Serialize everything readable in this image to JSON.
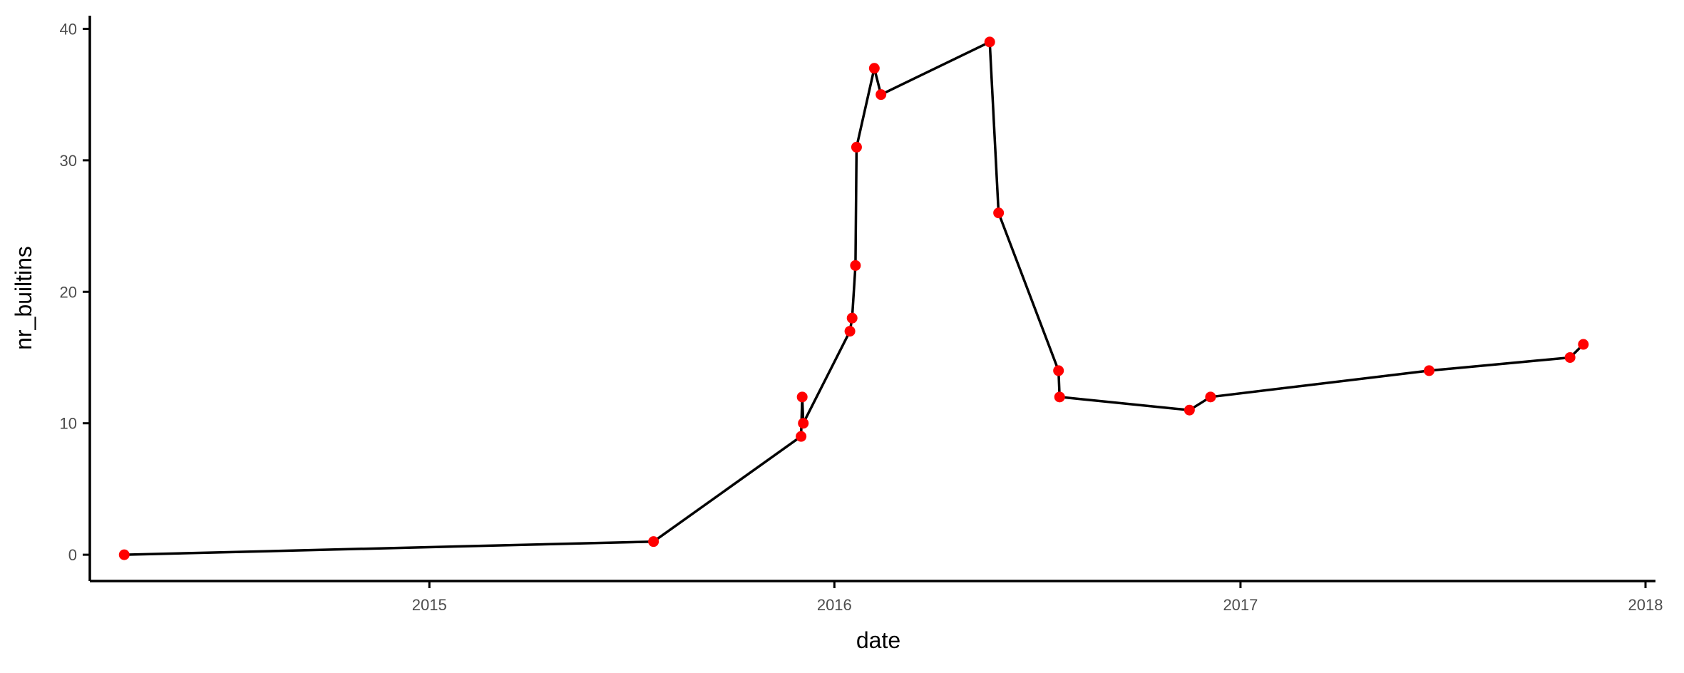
{
  "chart_data": {
    "type": "line",
    "title": "",
    "xlabel": "date",
    "ylabel": "nr_builtins",
    "x_is_date": true,
    "xlim": [
      "2014-03-01",
      "2018-01-10"
    ],
    "ylim": [
      -2,
      41
    ],
    "xticks": [
      {
        "value": "2015-01-01",
        "label": "2015"
      },
      {
        "value": "2016-01-01",
        "label": "2016"
      },
      {
        "value": "2017-01-01",
        "label": "2017"
      },
      {
        "value": "2018-01-01",
        "label": "2018"
      }
    ],
    "yticks": [
      0,
      10,
      20,
      30,
      40
    ],
    "grid": false,
    "legend": "none",
    "line_color": "#000000",
    "point_color": "#ff0000",
    "points": [
      {
        "x": "2014-04-01",
        "y": 0
      },
      {
        "x": "2015-07-22",
        "y": 1
      },
      {
        "x": "2015-12-02",
        "y": 9
      },
      {
        "x": "2015-12-03",
        "y": 12
      },
      {
        "x": "2015-12-04",
        "y": 10
      },
      {
        "x": "2016-01-15",
        "y": 17
      },
      {
        "x": "2016-01-17",
        "y": 18
      },
      {
        "x": "2016-01-20",
        "y": 22
      },
      {
        "x": "2016-01-21",
        "y": 31
      },
      {
        "x": "2016-02-06",
        "y": 37
      },
      {
        "x": "2016-02-12",
        "y": 35
      },
      {
        "x": "2016-05-20",
        "y": 39
      },
      {
        "x": "2016-05-28",
        "y": 26
      },
      {
        "x": "2016-07-21",
        "y": 14
      },
      {
        "x": "2016-07-22",
        "y": 12
      },
      {
        "x": "2016-11-16",
        "y": 11
      },
      {
        "x": "2016-12-05",
        "y": 12
      },
      {
        "x": "2017-06-20",
        "y": 14
      },
      {
        "x": "2017-10-25",
        "y": 15
      },
      {
        "x": "2017-11-06",
        "y": 16
      }
    ]
  }
}
